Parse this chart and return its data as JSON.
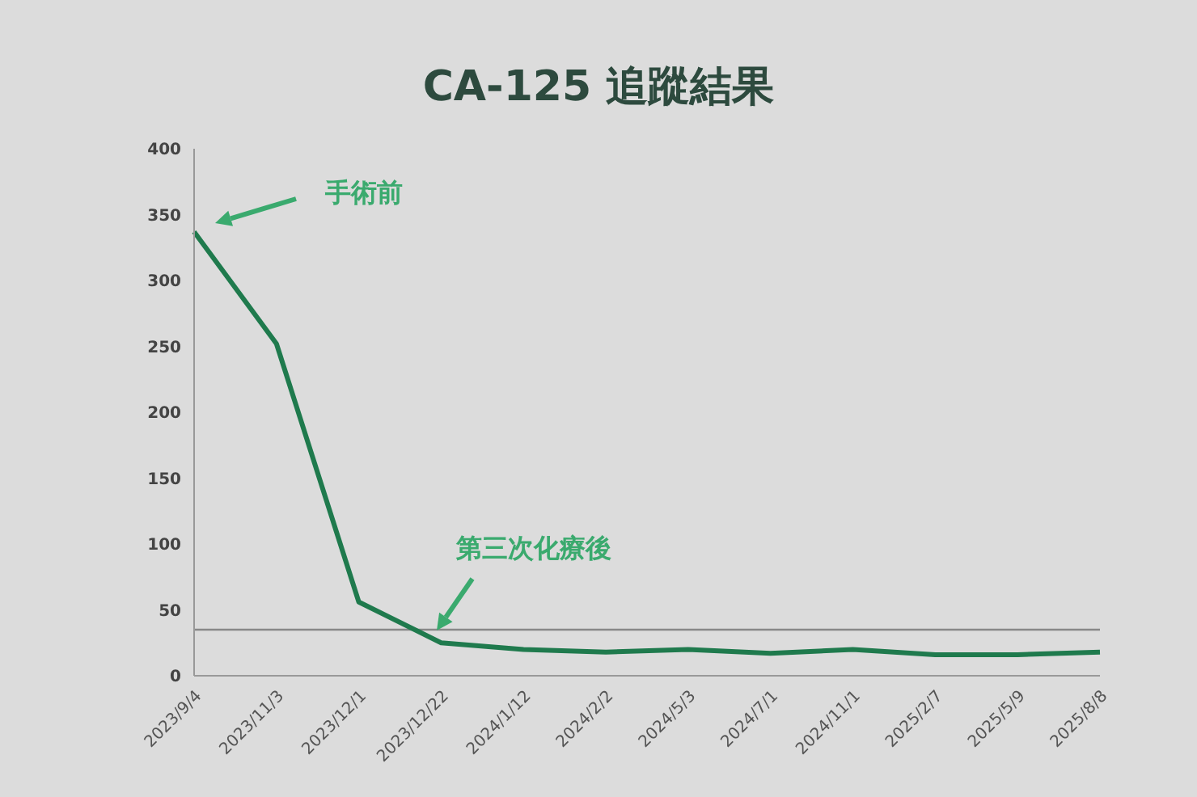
{
  "chart_data": {
    "type": "line",
    "title": "CA-125 追蹤結果",
    "categories": [
      "2023/9/4",
      "2023/11/3",
      "2023/12/1",
      "2023/12/22",
      "2024/1/12",
      "2024/2/2",
      "2024/5/3",
      "2024/7/1",
      "2024/11/1",
      "2025/2/7",
      "2025/5/9",
      "2025/8/8"
    ],
    "series": [
      {
        "color": "#1f7a4d",
        "values": [
          337,
          252,
          56,
          25,
          20,
          18,
          20,
          17,
          20,
          16,
          16,
          18
        ]
      }
    ],
    "ylim": [
      0,
      400
    ],
    "yticks": [
      0,
      50,
      100,
      150,
      200,
      250,
      300,
      350,
      400
    ],
    "marker": "none",
    "line_style": "solid",
    "ref_lines": [
      {
        "axis": "y",
        "value": 35,
        "color": "#888888"
      }
    ],
    "annotations": [
      "手術前",
      "第三次化療後"
    ]
  }
}
